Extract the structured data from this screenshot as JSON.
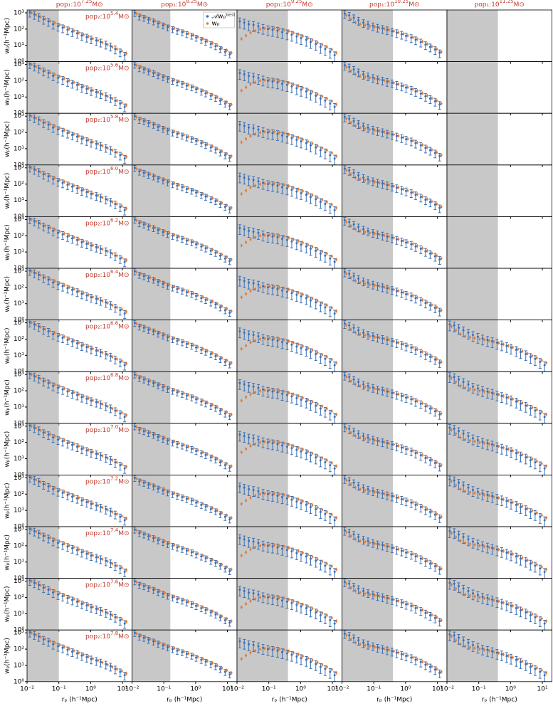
{
  "chart_data": {
    "type": "panel-grid",
    "col_prefix": "pop₁:10",
    "row_prefix": "pop₂:10",
    "unit": "M⊙",
    "x_label": "rₚ (h⁻¹Mpc)",
    "y_label": "wₚ(h⁻¹Mpc)",
    "xlim": [
      0.01,
      20
    ],
    "ylim": [
      1,
      1500
    ],
    "log": true,
    "shade_color": "#c8c8c8",
    "label_color": "#c0392b",
    "xticks": [
      {
        "value": 0.01,
        "label": "10⁻²"
      },
      {
        "value": 0.1,
        "label": "10⁻¹"
      },
      {
        "value": 1,
        "label": "10⁰"
      },
      {
        "value": 10,
        "label": "10¹"
      }
    ],
    "yticks": [
      {
        "value": 1,
        "label": "10⁰"
      },
      {
        "value": 10,
        "label": "10¹"
      },
      {
        "value": 100,
        "label": "10²"
      },
      {
        "value": 1000,
        "label": "10³"
      }
    ],
    "x": [
      0.013,
      0.018,
      0.025,
      0.035,
      0.05,
      0.07,
      0.1,
      0.14,
      0.2,
      0.28,
      0.4,
      0.56,
      0.8,
      1.1,
      1.6,
      2.2,
      3.2,
      4.5,
      6.3,
      9,
      12.5
    ],
    "legend": [
      "𝒜wₚᵇᵉˢᵗ",
      "wₚ"
    ],
    "series_colors": [
      "#3a6fb5",
      "#e07b39"
    ],
    "rows": [
      "5.4",
      "5.6",
      "5.8",
      "6.0",
      "6.2",
      "6.4",
      "6.6",
      "6.8",
      "7.0",
      "7.2",
      "7.4",
      "7.6",
      "7.8"
    ],
    "columns": [
      {
        "title": "7.25",
        "shade_to": 0.1,
        "empty_rows": [],
        "model": [
          1000,
          750,
          560,
          420,
          320,
          240,
          180,
          140,
          105,
          80,
          60,
          46,
          35,
          26,
          20,
          15,
          11,
          8,
          6,
          4.5,
          3.2
        ],
        "measured": [
          1100,
          800,
          600,
          400,
          300,
          200,
          150,
          120,
          90,
          70,
          55,
          40,
          32,
          25,
          20,
          16,
          12,
          9,
          6,
          4,
          2.5
        ],
        "err_frac": 0.5
      },
      {
        "title": "8.25",
        "shade_to": 0.16,
        "empty_rows": [],
        "model": [
          900,
          700,
          540,
          410,
          320,
          250,
          190,
          150,
          115,
          90,
          70,
          55,
          43,
          33,
          25,
          19,
          14,
          10,
          7,
          5,
          3.5
        ],
        "measured": [
          1000,
          600,
          500,
          380,
          300,
          220,
          170,
          130,
          100,
          80,
          65,
          50,
          40,
          30,
          22,
          17,
          12,
          9,
          6,
          4,
          2.8
        ],
        "err_frac": 0.4
      },
      {
        "title": "9.25",
        "shade_to": 0.4,
        "empty_rows": [],
        "model": [
          25,
          40,
          60,
          80,
          100,
          110,
          115,
          110,
          100,
          90,
          75,
          60,
          48,
          37,
          28,
          21,
          15,
          11,
          8,
          5.5,
          3.5
        ],
        "measured": [
          300,
          250,
          200,
          180,
          150,
          120,
          100,
          90,
          80,
          65,
          55,
          45,
          35,
          28,
          22,
          16,
          12,
          8,
          6,
          4,
          2.5
        ],
        "err_frac": 0.6
      },
      {
        "title": "10.25",
        "shade_to": 0.4,
        "empty_rows": [],
        "model": [
          700,
          400,
          250,
          200,
          170,
          150,
          135,
          120,
          105,
          90,
          75,
          62,
          50,
          40,
          31,
          24,
          17,
          12,
          8.5,
          6,
          4
        ],
        "measured": [
          900,
          700,
          500,
          350,
          250,
          200,
          160,
          130,
          110,
          90,
          75,
          60,
          48,
          38,
          30,
          22,
          16,
          11,
          8,
          5.5,
          3.5
        ],
        "err_frac": 0.5
      },
      {
        "title": "11.25",
        "shade_to": 0.4,
        "empty_rows": [
          0,
          1,
          2,
          3,
          4,
          5
        ],
        "model": [
          600,
          350,
          200,
          150,
          130,
          115,
          100,
          90,
          80,
          68,
          58,
          48,
          39,
          31,
          24,
          18,
          13,
          9.5,
          7,
          5,
          3.5
        ],
        "measured": [
          800,
          700,
          500,
          350,
          250,
          180,
          140,
          110,
          90,
          75,
          60,
          48,
          38,
          30,
          22,
          16,
          12,
          8,
          6,
          4,
          2.5
        ],
        "err_frac": 0.6
      }
    ]
  }
}
